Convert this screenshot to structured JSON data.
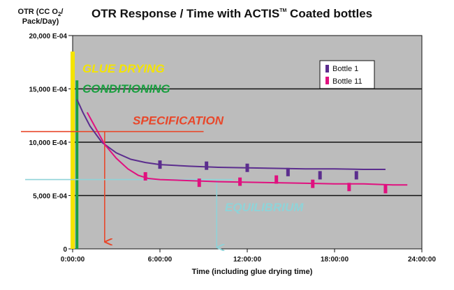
{
  "chart_data": {
    "type": "line",
    "title_main": "OTR Response / Time with ACTIS",
    "title_tm": "TM",
    "title_tail": " Coated bottles",
    "ylabel_line1": "OTR (CC O",
    "ylabel_sub": "2",
    "ylabel_line1_tail": "/",
    "ylabel_line2": "Pack/Day)",
    "xlabel": "Time (including glue drying time)",
    "xlim": [
      0,
      24
    ],
    "ylim": [
      0,
      20000
    ],
    "x_ticks": [
      {
        "value": 0,
        "label": "0:00:00"
      },
      {
        "value": 6,
        "label": "6:00:00"
      },
      {
        "value": 12,
        "label": "12:00:00"
      },
      {
        "value": 18,
        "label": "18:00:00"
      },
      {
        "value": 24,
        "label": "24:00:00"
      }
    ],
    "y_ticks": [
      {
        "value": 0,
        "label": "0"
      },
      {
        "value": 5000,
        "label": "5,000 E-04"
      },
      {
        "value": 10000,
        "label": "10,000 E-04"
      },
      {
        "value": 15000,
        "label": "15,000 E-04"
      },
      {
        "value": 20000,
        "label": "20,000 E-04"
      }
    ],
    "grid": true,
    "legend_position": "top-right",
    "series": [
      {
        "name": "Bottle 1",
        "color": "#5b2d8e",
        "curve": [
          [
            0.3,
            14000
          ],
          [
            0.7,
            12800
          ],
          [
            1.2,
            11500
          ],
          [
            2,
            10000
          ],
          [
            3,
            9000
          ],
          [
            4,
            8400
          ],
          [
            5,
            8100
          ],
          [
            6,
            7900
          ],
          [
            8,
            7750
          ],
          [
            10,
            7650
          ],
          [
            12,
            7600
          ],
          [
            14,
            7550
          ],
          [
            16,
            7500
          ],
          [
            18,
            7500
          ],
          [
            20,
            7450
          ],
          [
            21.5,
            7450
          ]
        ],
        "markers": [
          [
            6,
            7900
          ],
          [
            9.2,
            7800
          ],
          [
            12,
            7600
          ],
          [
            14.8,
            7200
          ],
          [
            17,
            6900
          ],
          [
            19.5,
            6900
          ]
        ]
      },
      {
        "name": "Bottle 11",
        "color": "#e0117f",
        "curve": [
          [
            1,
            12800
          ],
          [
            1.6,
            11300
          ],
          [
            2.2,
            9800
          ],
          [
            3,
            8500
          ],
          [
            3.8,
            7500
          ],
          [
            4.5,
            6900
          ],
          [
            5.2,
            6600
          ],
          [
            6,
            6500
          ],
          [
            8,
            6400
          ],
          [
            10,
            6300
          ],
          [
            12,
            6250
          ],
          [
            14,
            6200
          ],
          [
            16,
            6150
          ],
          [
            18,
            6100
          ],
          [
            20,
            6100
          ],
          [
            22,
            6000
          ],
          [
            23,
            6000
          ]
        ],
        "markers": [
          [
            5,
            6800
          ],
          [
            8.7,
            6200
          ],
          [
            11.5,
            6300
          ],
          [
            14,
            6500
          ],
          [
            16.5,
            6100
          ],
          [
            19,
            5800
          ],
          [
            21.5,
            5600
          ]
        ]
      }
    ],
    "annotations": {
      "glue_drying": {
        "label": "GLUE DRYING",
        "x": 0,
        "color": "#f4e400"
      },
      "conditioning": {
        "label": "CONDITIONING",
        "x": 0.25,
        "color": "#1aa040"
      },
      "specification": {
        "label": "SPECIFICATION",
        "level": 11000,
        "x_from": -3.2,
        "x_to": 9,
        "arrow_x": 2.2,
        "color": "#e8472a"
      },
      "equilibrium": {
        "label": "EQUILIBRIUM",
        "level": 6500,
        "x_from": -3.2,
        "x_to": 11,
        "arrow_x": 9.9,
        "color": "#8fd3d8"
      }
    }
  }
}
